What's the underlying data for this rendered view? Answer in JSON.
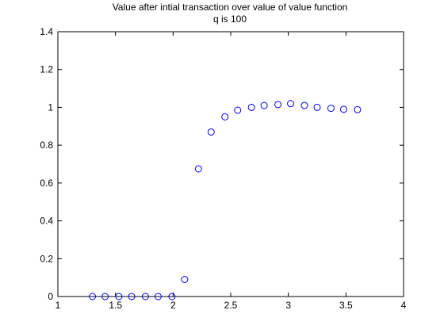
{
  "chart_data": {
    "type": "scatter",
    "title": "Value after intial transaction over value of value function",
    "subtitle": "q is 100",
    "xlabel": "",
    "ylabel": "",
    "xlim": [
      1,
      4
    ],
    "ylim": [
      0,
      1.4
    ],
    "xticks": [
      1,
      1.5,
      2,
      2.5,
      3,
      3.5,
      4
    ],
    "xtick_labels": [
      "1",
      "1.5",
      "2",
      "2.5",
      "3",
      "3.5",
      "4"
    ],
    "yticks": [
      0,
      0.2,
      0.4,
      0.6,
      0.8,
      1,
      1.2,
      1.4
    ],
    "ytick_labels": [
      "0",
      "0.2",
      "0.4",
      "0.6",
      "0.8",
      "1",
      "1.2",
      "1.4"
    ],
    "grid": false,
    "marker": "open-circle",
    "marker_color": "#0000ff",
    "series": [
      {
        "x": [
          1.3,
          1.41,
          1.53,
          1.64,
          1.76,
          1.87,
          1.99,
          2.1,
          2.22,
          2.33,
          2.45,
          2.56,
          2.68,
          2.79,
          2.91,
          3.02,
          3.14,
          3.25,
          3.37,
          3.48,
          3.6
        ],
        "values": [
          0,
          0,
          0,
          0,
          0,
          0,
          0,
          0.09,
          0.675,
          0.87,
          0.95,
          0.985,
          1.0,
          1.01,
          1.015,
          1.02,
          1.01,
          1.0,
          0.995,
          0.99,
          0.988
        ]
      }
    ]
  }
}
